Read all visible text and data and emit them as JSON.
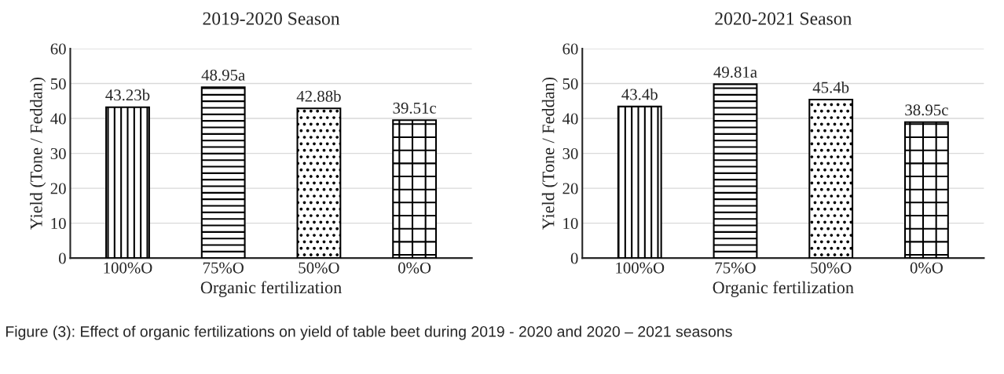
{
  "chart_data": [
    {
      "type": "bar",
      "title": "2019-2020 Season",
      "xlabel": "Organic fertilization",
      "ylabel": "Yield (Tone / Feddan)",
      "categories": [
        "100%O",
        "75%O",
        "50%O",
        "0%O"
      ],
      "values": [
        43.23,
        48.95,
        42.88,
        39.51
      ],
      "value_labels": [
        "43.23b",
        "48.95a",
        "42.88b",
        "39.51c"
      ],
      "ylim": [
        0,
        60
      ],
      "yticks": [
        0,
        10,
        20,
        30,
        40,
        50,
        60
      ],
      "grid": "y",
      "annotations": [
        "Figure (3): Effect of organic fertilizations on yield of table beet during 2019 - 2020 and 2020 – 2021 seasons"
      ]
    },
    {
      "type": "bar",
      "title": "2020-2021 Season",
      "xlabel": "Organic fertilization",
      "ylabel": "Yield (Tone / Feddan)",
      "categories": [
        "100%O",
        "75%O",
        "50%O",
        "0%O"
      ],
      "values": [
        43.4,
        49.81,
        45.4,
        38.95
      ],
      "value_labels": [
        "43.4b",
        "49.81a",
        "45.4b",
        "38.95c"
      ],
      "ylim": [
        0,
        60
      ],
      "yticks": [
        0,
        10,
        20,
        30,
        40,
        50,
        60
      ],
      "grid": "y"
    }
  ]
}
